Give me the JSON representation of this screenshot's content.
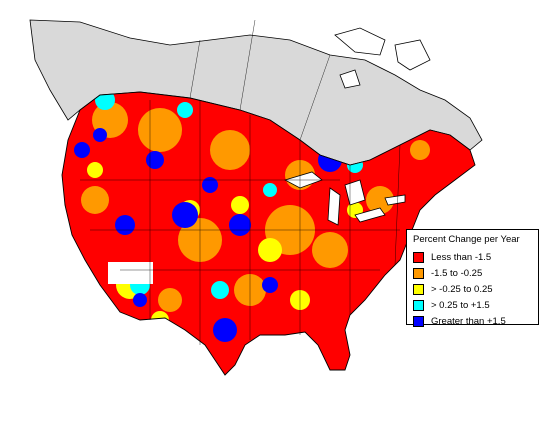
{
  "legend": {
    "title": "Percent Change per Year",
    "items": [
      {
        "label": "Less than -1.5",
        "color": "#ff0000",
        "icon": "swatch-red"
      },
      {
        "label": "-1.5 to -0.25",
        "color": "#ff9900",
        "icon": "swatch-orange"
      },
      {
        "label": "> -0.25 to 0.25",
        "color": "#ffff00",
        "icon": "swatch-yellow"
      },
      {
        "label": "> 0.25 to +1.5",
        "color": "#00ffff",
        "icon": "swatch-cyan"
      },
      {
        "label": "Greater than +1.5",
        "color": "#0000ff",
        "icon": "swatch-blue"
      }
    ]
  },
  "map": {
    "no_data_color": "#d9d9d9",
    "background_color": "#ffffff",
    "border_color": "#000000"
  }
}
